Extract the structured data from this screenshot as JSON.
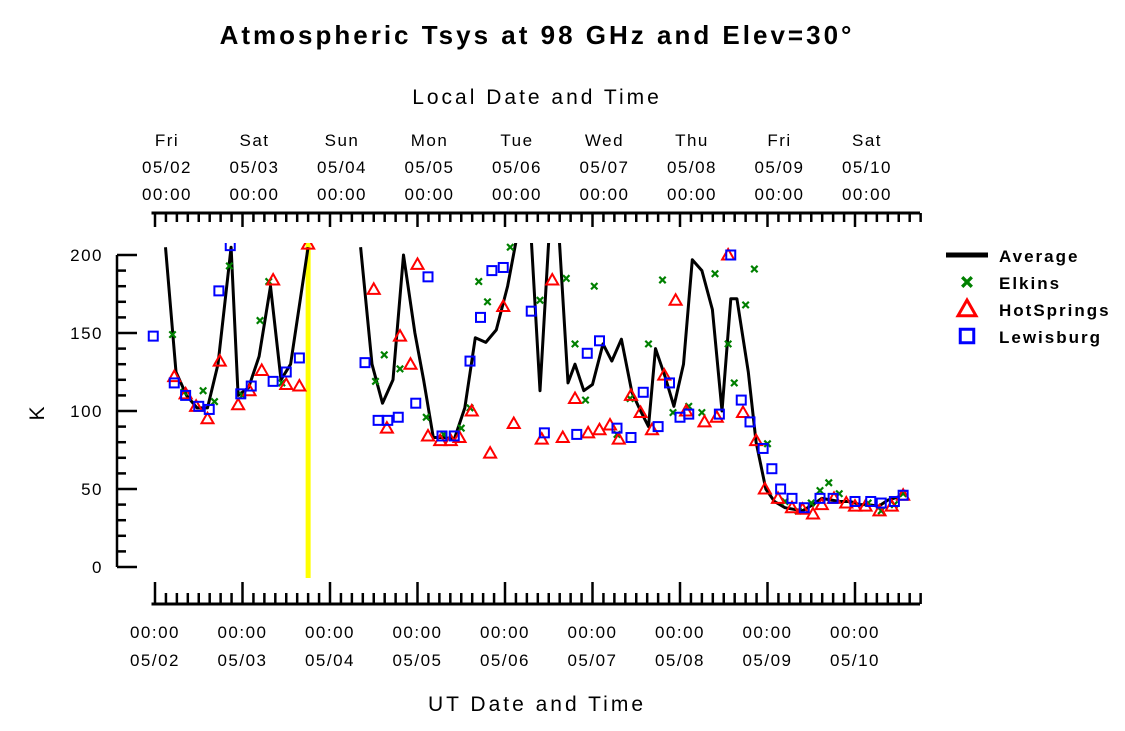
{
  "chart_data": {
    "type": "scatter",
    "title": "Atmospheric Tsys at 98 GHz and Elev=30°",
    "top_axis_label": "Local Date and Time",
    "bottom_axis_label": "UT Date and Time",
    "ylabel": "K",
    "ylim": [
      0,
      200
    ],
    "xlim_days": [
      -0.04,
      8.75
    ],
    "y_ticks": [
      0,
      50,
      100,
      150,
      200
    ],
    "top_ticks": [
      {
        "day": "Fri",
        "date": "05/02",
        "time": "00:00"
      },
      {
        "day": "Sat",
        "date": "05/03",
        "time": "00:00"
      },
      {
        "day": "Sun",
        "date": "05/04",
        "time": "00:00"
      },
      {
        "day": "Mon",
        "date": "05/05",
        "time": "00:00"
      },
      {
        "day": "Tue",
        "date": "05/06",
        "time": "00:00"
      },
      {
        "day": "Wed",
        "date": "05/07",
        "time": "00:00"
      },
      {
        "day": "Thu",
        "date": "05/08",
        "time": "00:00"
      },
      {
        "day": "Fri",
        "date": "05/09",
        "time": "00:00"
      },
      {
        "day": "Sat",
        "date": "05/10",
        "time": "00:00"
      }
    ],
    "bottom_ticks": [
      {
        "time": "00:00",
        "date": "05/02"
      },
      {
        "time": "00:00",
        "date": "05/03"
      },
      {
        "time": "00:00",
        "date": "05/04"
      },
      {
        "time": "00:00",
        "date": "05/05"
      },
      {
        "time": "00:00",
        "date": "05/06"
      },
      {
        "time": "00:00",
        "date": "05/07"
      },
      {
        "time": "00:00",
        "date": "05/08"
      },
      {
        "time": "00:00",
        "date": "05/09"
      },
      {
        "time": "00:00",
        "date": "05/10"
      }
    ],
    "marker_line": {
      "x": 1.75,
      "color": "#ffff00"
    },
    "series": [
      {
        "name": "Average",
        "marker": "line",
        "color": "#000000",
        "segments": [
          [
            [
              0.12,
              205
            ],
            [
              0.24,
              125
            ],
            [
              0.36,
              110
            ],
            [
              0.48,
              102
            ],
            [
              0.6,
              102
            ],
            [
              0.72,
              130
            ],
            [
              0.87,
              205
            ],
            [
              0.95,
              110
            ],
            [
              1.07,
              115
            ],
            [
              1.19,
              135
            ],
            [
              1.32,
              180
            ],
            [
              1.44,
              120
            ],
            [
              1.55,
              130
            ],
            [
              1.75,
              205
            ]
          ],
          [
            [
              2.35,
              205
            ],
            [
              2.48,
              130
            ],
            [
              2.6,
              105
            ],
            [
              2.72,
              120
            ],
            [
              2.84,
              200
            ],
            [
              2.97,
              150
            ],
            [
              3.07,
              120
            ],
            [
              3.18,
              83
            ],
            [
              3.3,
              83
            ],
            [
              3.42,
              82
            ],
            [
              3.54,
              102
            ],
            [
              3.66,
              147
            ],
            [
              3.78,
              144
            ],
            [
              3.9,
              152
            ],
            [
              4.03,
              180
            ],
            [
              4.13,
              210
            ]
          ],
          [
            [
              4.3,
              210
            ],
            [
              4.4,
              113
            ],
            [
              4.5,
              210
            ]
          ],
          [
            [
              4.62,
              210
            ],
            [
              4.72,
              118
            ],
            [
              4.8,
              130
            ],
            [
              4.9,
              113
            ],
            [
              5.0,
              117
            ],
            [
              5.12,
              143
            ],
            [
              5.22,
              132
            ],
            [
              5.33,
              146
            ],
            [
              5.45,
              112
            ],
            [
              5.55,
              100
            ],
            [
              5.64,
              90
            ],
            [
              5.72,
              140
            ],
            [
              5.83,
              122
            ],
            [
              5.93,
              103
            ],
            [
              6.04,
              130
            ],
            [
              6.14,
              197
            ],
            [
              6.25,
              190
            ],
            [
              6.37,
              165
            ],
            [
              6.48,
              100
            ],
            [
              6.58,
              172
            ],
            [
              6.65,
              172
            ],
            [
              6.78,
              125
            ],
            [
              6.87,
              80
            ],
            [
              6.98,
              50
            ],
            [
              7.08,
              42
            ],
            [
              7.2,
              38
            ],
            [
              7.3,
              37
            ],
            [
              7.4,
              36
            ],
            [
              7.52,
              40
            ],
            [
              7.62,
              44
            ],
            [
              7.72,
              43
            ],
            [
              7.82,
              42
            ],
            [
              7.95,
              42
            ],
            [
              8.05,
              40
            ],
            [
              8.15,
              40
            ],
            [
              8.27,
              39
            ],
            [
              8.38,
              43
            ],
            [
              8.5,
              45
            ]
          ]
        ]
      },
      {
        "name": "Elkins",
        "marker": "x",
        "color": "#008000",
        "points": [
          [
            0.2,
            149
          ],
          [
            0.33,
            112
          ],
          [
            0.55,
            113
          ],
          [
            0.68,
            106
          ],
          [
            0.85,
            193
          ],
          [
            1.0,
            110
          ],
          [
            1.2,
            158
          ],
          [
            1.3,
            183
          ],
          [
            1.45,
            118
          ],
          [
            2.52,
            119
          ],
          [
            2.62,
            136
          ],
          [
            2.8,
            127
          ],
          [
            3.1,
            96
          ],
          [
            3.3,
            85
          ],
          [
            3.5,
            89
          ],
          [
            3.6,
            102
          ],
          [
            3.7,
            183
          ],
          [
            3.8,
            170
          ],
          [
            4.06,
            205
          ],
          [
            4.4,
            171
          ],
          [
            4.7,
            185
          ],
          [
            4.8,
            143
          ],
          [
            4.92,
            107
          ],
          [
            5.02,
            180
          ],
          [
            5.28,
            85
          ],
          [
            5.43,
            108
          ],
          [
            5.64,
            143
          ],
          [
            5.8,
            184
          ],
          [
            5.92,
            99
          ],
          [
            6.1,
            103
          ],
          [
            6.25,
            99
          ],
          [
            6.4,
            188
          ],
          [
            6.55,
            143
          ],
          [
            6.62,
            118
          ],
          [
            6.75,
            168
          ],
          [
            6.85,
            191
          ],
          [
            7.0,
            79
          ],
          [
            7.2,
            42
          ],
          [
            7.35,
            36
          ],
          [
            7.5,
            41
          ],
          [
            7.6,
            49
          ],
          [
            7.7,
            54
          ],
          [
            7.82,
            47
          ],
          [
            8.15,
            41
          ],
          [
            8.3,
            36
          ],
          [
            8.45,
            40
          ],
          [
            8.55,
            47
          ]
        ]
      },
      {
        "name": "HotSprings",
        "marker": "triangle",
        "color": "#ff0000",
        "points": [
          [
            0.22,
            122
          ],
          [
            0.35,
            111
          ],
          [
            0.47,
            103
          ],
          [
            0.6,
            95
          ],
          [
            0.74,
            132
          ],
          [
            0.95,
            104
          ],
          [
            1.08,
            113
          ],
          [
            1.22,
            126
          ],
          [
            1.35,
            184
          ],
          [
            1.5,
            117
          ],
          [
            1.65,
            116
          ],
          [
            1.75,
            207
          ],
          [
            2.5,
            178
          ],
          [
            2.65,
            89
          ],
          [
            2.8,
            148
          ],
          [
            2.92,
            130
          ],
          [
            3.0,
            194
          ],
          [
            3.12,
            84
          ],
          [
            3.26,
            81
          ],
          [
            3.38,
            81
          ],
          [
            3.48,
            83
          ],
          [
            3.62,
            100
          ],
          [
            3.83,
            73
          ],
          [
            3.98,
            167
          ],
          [
            4.1,
            92
          ],
          [
            4.42,
            82
          ],
          [
            4.54,
            184
          ],
          [
            4.66,
            83
          ],
          [
            4.8,
            108
          ],
          [
            4.95,
            86
          ],
          [
            5.08,
            88
          ],
          [
            5.2,
            91
          ],
          [
            5.3,
            82
          ],
          [
            5.44,
            110
          ],
          [
            5.55,
            99
          ],
          [
            5.68,
            88
          ],
          [
            5.82,
            123
          ],
          [
            5.95,
            171
          ],
          [
            6.07,
            100
          ],
          [
            6.28,
            93
          ],
          [
            6.42,
            96
          ],
          [
            6.55,
            200
          ],
          [
            6.72,
            99
          ],
          [
            6.87,
            81
          ],
          [
            6.97,
            50
          ],
          [
            7.12,
            44
          ],
          [
            7.28,
            38
          ],
          [
            7.4,
            37
          ],
          [
            7.52,
            34
          ],
          [
            7.62,
            40
          ],
          [
            7.76,
            44
          ],
          [
            7.9,
            41
          ],
          [
            8.0,
            39
          ],
          [
            8.12,
            39
          ],
          [
            8.28,
            36
          ],
          [
            8.42,
            39
          ],
          [
            8.55,
            46
          ]
        ]
      },
      {
        "name": "Lewisburg",
        "marker": "square",
        "color": "#0000ff",
        "points": [
          [
            -0.02,
            148
          ],
          [
            0.22,
            118
          ],
          [
            0.35,
            110
          ],
          [
            0.5,
            103
          ],
          [
            0.62,
            101
          ],
          [
            0.73,
            177
          ],
          [
            0.86,
            206
          ],
          [
            0.98,
            111
          ],
          [
            1.1,
            116
          ],
          [
            1.35,
            119
          ],
          [
            1.5,
            125
          ],
          [
            1.65,
            134
          ],
          [
            2.4,
            131
          ],
          [
            2.55,
            94
          ],
          [
            2.66,
            94
          ],
          [
            2.78,
            96
          ],
          [
            2.98,
            105
          ],
          [
            3.12,
            186
          ],
          [
            3.28,
            84
          ],
          [
            3.42,
            84
          ],
          [
            3.6,
            132
          ],
          [
            3.72,
            160
          ],
          [
            3.85,
            190
          ],
          [
            3.98,
            192
          ],
          [
            4.3,
            164
          ],
          [
            4.45,
            86
          ],
          [
            4.82,
            85
          ],
          [
            4.94,
            137
          ],
          [
            5.08,
            145
          ],
          [
            5.28,
            89
          ],
          [
            5.44,
            83
          ],
          [
            5.58,
            112
          ],
          [
            5.75,
            90
          ],
          [
            5.88,
            118
          ],
          [
            6.0,
            96
          ],
          [
            6.1,
            98
          ],
          [
            6.45,
            98
          ],
          [
            6.58,
            200
          ],
          [
            6.7,
            107
          ],
          [
            6.8,
            93
          ],
          [
            6.95,
            76
          ],
          [
            7.05,
            63
          ],
          [
            7.15,
            50
          ],
          [
            7.28,
            44
          ],
          [
            7.42,
            38
          ],
          [
            7.6,
            44
          ],
          [
            7.75,
            44
          ],
          [
            8.0,
            42
          ],
          [
            8.18,
            42
          ],
          [
            8.3,
            41
          ],
          [
            8.45,
            42
          ],
          [
            8.55,
            46
          ]
        ]
      }
    ],
    "legend": {
      "position": "right"
    }
  }
}
